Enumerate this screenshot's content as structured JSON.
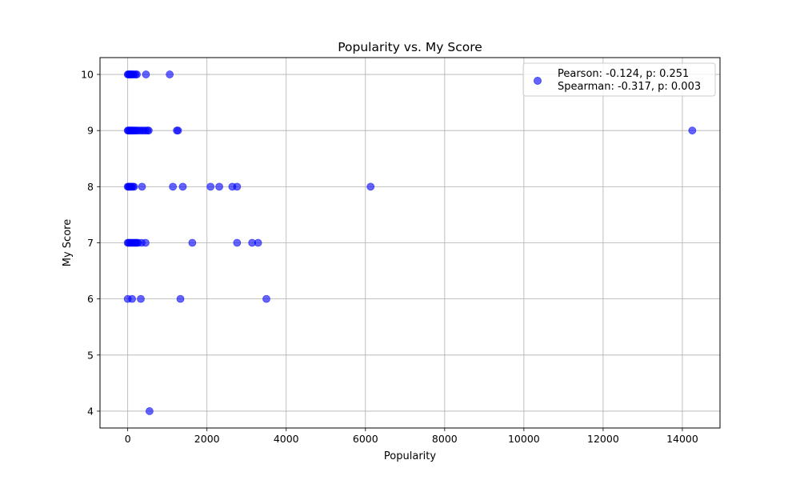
{
  "chart_data": {
    "type": "scatter",
    "title": "Popularity vs. My Score",
    "xlabel": "Popularity",
    "ylabel": "My Score",
    "xlim": [
      -700,
      14950
    ],
    "ylim": [
      3.7,
      10.3
    ],
    "xticks": [
      0,
      2000,
      4000,
      6000,
      8000,
      10000,
      12000,
      14000
    ],
    "yticks": [
      4,
      5,
      6,
      7,
      8,
      9,
      10
    ],
    "grid": true,
    "legend": {
      "position": "top-right",
      "lines": [
        "Pearson: -0.124, p: 0.251",
        "Spearman: -0.317, p: 0.003"
      ]
    },
    "marker_color": "#0000ff",
    "marker_alpha": 0.6,
    "series": [
      {
        "points": [
          {
            "x": 0,
            "y": 10
          },
          {
            "x": 20,
            "y": 10
          },
          {
            "x": 40,
            "y": 10
          },
          {
            "x": 60,
            "y": 10
          },
          {
            "x": 80,
            "y": 10
          },
          {
            "x": 100,
            "y": 10
          },
          {
            "x": 130,
            "y": 10
          },
          {
            "x": 160,
            "y": 10
          },
          {
            "x": 200,
            "y": 10
          },
          {
            "x": 230,
            "y": 10
          },
          {
            "x": 460,
            "y": 10
          },
          {
            "x": 1060,
            "y": 10
          },
          {
            "x": 0,
            "y": 9
          },
          {
            "x": 20,
            "y": 9
          },
          {
            "x": 40,
            "y": 9
          },
          {
            "x": 60,
            "y": 9
          },
          {
            "x": 80,
            "y": 9
          },
          {
            "x": 100,
            "y": 9
          },
          {
            "x": 120,
            "y": 9
          },
          {
            "x": 150,
            "y": 9
          },
          {
            "x": 180,
            "y": 9
          },
          {
            "x": 210,
            "y": 9
          },
          {
            "x": 250,
            "y": 9
          },
          {
            "x": 300,
            "y": 9
          },
          {
            "x": 350,
            "y": 9
          },
          {
            "x": 400,
            "y": 9
          },
          {
            "x": 450,
            "y": 9
          },
          {
            "x": 500,
            "y": 9
          },
          {
            "x": 530,
            "y": 9
          },
          {
            "x": 1240,
            "y": 9
          },
          {
            "x": 1270,
            "y": 9
          },
          {
            "x": 14250,
            "y": 9
          },
          {
            "x": 0,
            "y": 8
          },
          {
            "x": 20,
            "y": 8
          },
          {
            "x": 40,
            "y": 8
          },
          {
            "x": 60,
            "y": 8
          },
          {
            "x": 80,
            "y": 8
          },
          {
            "x": 100,
            "y": 8
          },
          {
            "x": 130,
            "y": 8
          },
          {
            "x": 160,
            "y": 8
          },
          {
            "x": 360,
            "y": 8
          },
          {
            "x": 1140,
            "y": 8
          },
          {
            "x": 1390,
            "y": 8
          },
          {
            "x": 2090,
            "y": 8
          },
          {
            "x": 2310,
            "y": 8
          },
          {
            "x": 2640,
            "y": 8
          },
          {
            "x": 2760,
            "y": 8
          },
          {
            "x": 6130,
            "y": 8
          },
          {
            "x": 0,
            "y": 7
          },
          {
            "x": 20,
            "y": 7
          },
          {
            "x": 50,
            "y": 7
          },
          {
            "x": 80,
            "y": 7
          },
          {
            "x": 110,
            "y": 7
          },
          {
            "x": 140,
            "y": 7
          },
          {
            "x": 170,
            "y": 7
          },
          {
            "x": 200,
            "y": 7
          },
          {
            "x": 230,
            "y": 7
          },
          {
            "x": 260,
            "y": 7
          },
          {
            "x": 350,
            "y": 7
          },
          {
            "x": 450,
            "y": 7
          },
          {
            "x": 1630,
            "y": 7
          },
          {
            "x": 2760,
            "y": 7
          },
          {
            "x": 3140,
            "y": 7
          },
          {
            "x": 3290,
            "y": 7
          },
          {
            "x": 0,
            "y": 6
          },
          {
            "x": 110,
            "y": 6
          },
          {
            "x": 330,
            "y": 6
          },
          {
            "x": 1330,
            "y": 6
          },
          {
            "x": 3500,
            "y": 6
          },
          {
            "x": 550,
            "y": 4
          }
        ]
      }
    ]
  }
}
